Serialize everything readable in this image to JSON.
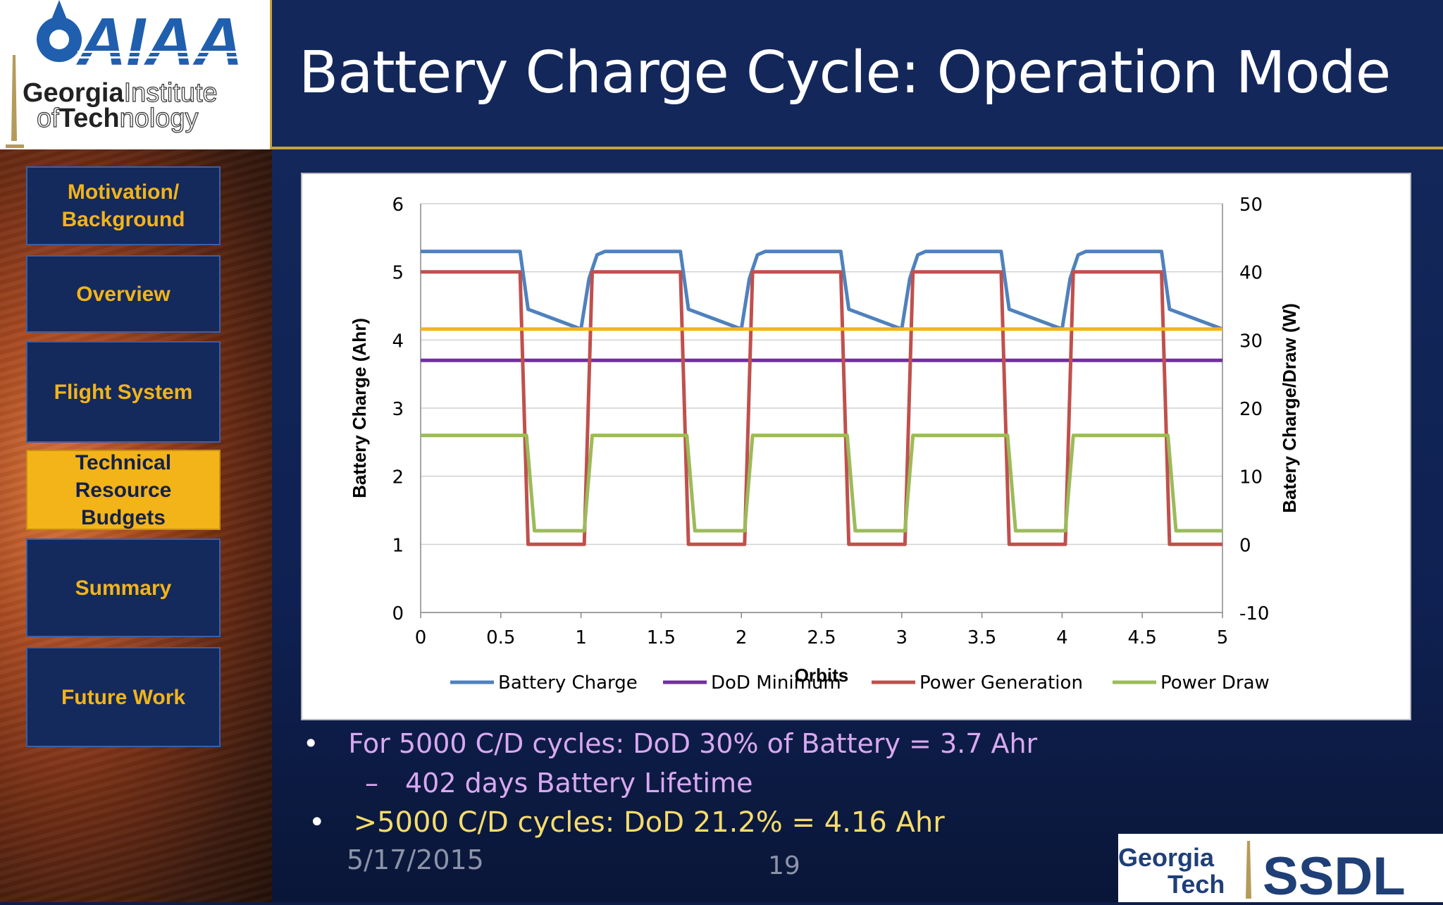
{
  "header": {
    "title": "Battery Charge Cycle: Operation Mode",
    "logo_aiaa": "AIAA",
    "logo_gt_line1_bold": "Georgia",
    "logo_gt_line1_light": "Institute",
    "logo_gt_line2_light1": "of",
    "logo_gt_line2_bold": "Tech",
    "logo_gt_line2_light2": "nology"
  },
  "sidebar": {
    "items": [
      {
        "label_line1": "Motivation/",
        "label_line2": "Background",
        "active": false
      },
      {
        "label_line1": "Overview",
        "label_line2": "",
        "active": false
      },
      {
        "label_line1": "Flight System",
        "label_line2": "",
        "active": false
      },
      {
        "label_line1": "Technical",
        "label_line2": "Resource",
        "label_line3": "Budgets",
        "active": true
      },
      {
        "label_line1": "Summary",
        "label_line2": "",
        "active": false
      },
      {
        "label_line1": "Future Work",
        "label_line2": "",
        "active": false
      }
    ]
  },
  "chart_data": {
    "type": "line",
    "xlabel": "Orbits",
    "ylabel_left": "Battery Charge (Ahr)",
    "ylabel_right": "Batery Charge/Draw (W)",
    "xlim": [
      0,
      5
    ],
    "ylim_left": [
      0,
      6
    ],
    "ylim_right": [
      -10,
      50
    ],
    "x_ticks": [
      "0",
      "0.5",
      "1",
      "1.5",
      "2",
      "2.5",
      "3",
      "3.5",
      "4",
      "4.5",
      "5"
    ],
    "y_left_ticks": [
      "0",
      "1",
      "2",
      "3",
      "4",
      "5",
      "6"
    ],
    "y_right_ticks": [
      "-10",
      "0",
      "10",
      "20",
      "30",
      "40",
      "50"
    ],
    "grid": "horizontal",
    "legend_position": "bottom",
    "series": [
      {
        "name": "Battery Charge",
        "color": "#4f81bd",
        "axis": "left",
        "x": [
          0,
          0.62,
          0.67,
          1.0,
          1.05,
          1.1,
          1.15,
          1.62,
          1.67,
          2.0,
          2.05,
          2.1,
          2.15,
          2.62,
          2.67,
          3.0,
          3.05,
          3.1,
          3.15,
          3.62,
          3.67,
          4.0,
          4.05,
          4.1,
          4.15,
          4.62,
          4.67,
          5.0
        ],
        "y": [
          5.3,
          5.3,
          4.45,
          4.16,
          4.9,
          5.25,
          5.3,
          5.3,
          4.45,
          4.16,
          4.9,
          5.25,
          5.3,
          5.3,
          4.45,
          4.16,
          4.9,
          5.25,
          5.3,
          5.3,
          4.45,
          4.16,
          4.9,
          5.25,
          5.3,
          5.3,
          4.45,
          4.16
        ]
      },
      {
        "name": "DoD Minimum",
        "color": "#7030a0",
        "axis": "left",
        "x": [
          0,
          5
        ],
        "y": [
          3.7,
          3.7
        ]
      },
      {
        "name": "Power Generation",
        "color": "#c0504d",
        "axis": "right",
        "x": [
          0,
          0.62,
          0.67,
          1.02,
          1.07,
          1.62,
          1.67,
          2.02,
          2.07,
          2.62,
          2.67,
          3.02,
          3.07,
          3.62,
          3.67,
          4.02,
          4.07,
          4.62,
          4.67,
          5.0
        ],
        "y": [
          40,
          40,
          0,
          0,
          40,
          40,
          0,
          0,
          40,
          40,
          0,
          0,
          40,
          40,
          0,
          0,
          40,
          40,
          0,
          0
        ]
      },
      {
        "name": "Power Draw",
        "color": "#9bbb59",
        "axis": "right",
        "x": [
          0,
          0.66,
          0.71,
          1.02,
          1.07,
          1.66,
          1.71,
          2.02,
          2.07,
          2.66,
          2.71,
          3.02,
          3.07,
          3.66,
          3.71,
          4.02,
          4.07,
          4.66,
          4.71,
          5.0
        ],
        "y": [
          16,
          16,
          2,
          2,
          16,
          16,
          2,
          2,
          16,
          16,
          2,
          2,
          16,
          16,
          2,
          2,
          16,
          16,
          2,
          2
        ]
      },
      {
        "name": "",
        "color": "#f2b419",
        "axis": "left",
        "x": [
          0,
          5
        ],
        "y": [
          4.16,
          4.16
        ]
      }
    ]
  },
  "bullets": {
    "b1": "For 5000 C/D cycles: DoD 30% of Battery = 3.7 Ahr",
    "b2": "402 days Battery Lifetime",
    "b3": ">5000 C/D cycles: DoD 21.2% = 4.16 Ahr",
    "bullet_symbol": "•",
    "dash_symbol": "–"
  },
  "footer": {
    "date": "5/17/2015",
    "page": "19",
    "logo_gt_line1": "Georgia",
    "logo_gt_line2": "Tech",
    "logo_ssdl": "SSDL"
  },
  "colors": {
    "accent_gold": "#f2b419",
    "header_navy": "#13275a",
    "nav_blue": "#14295c"
  }
}
